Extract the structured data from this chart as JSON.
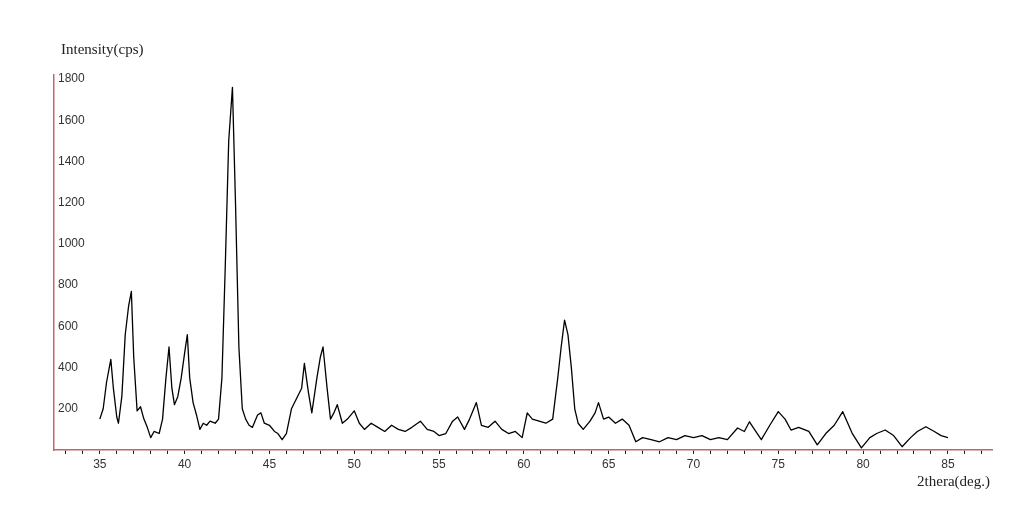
{
  "chart_data": {
    "type": "line",
    "xlabel": "2thera(deg.)",
    "ylabel": "Intensity(cps)",
    "xlim": [
      32.3,
      87.6
    ],
    "ylim": [
      0,
      1820
    ],
    "xticks": [
      {
        "value": 33,
        "label": null
      },
      {
        "value": 34,
        "label": null
      },
      35,
      {
        "value": 36,
        "label": null
      },
      {
        "value": 37,
        "label": null
      },
      {
        "value": 38,
        "label": null
      },
      {
        "value": 39,
        "label": null
      },
      40,
      {
        "value": 41,
        "label": null
      },
      {
        "value": 42,
        "label": null
      },
      {
        "value": 43,
        "label": null
      },
      {
        "value": 44,
        "label": null
      },
      45,
      {
        "value": 46,
        "label": null
      },
      {
        "value": 47,
        "label": null
      },
      {
        "value": 48,
        "label": null
      },
      {
        "value": 49,
        "label": null
      },
      50,
      {
        "value": 51,
        "label": null
      },
      {
        "value": 52,
        "label": null
      },
      {
        "value": 53,
        "label": null
      },
      {
        "value": 54,
        "label": null
      },
      55,
      {
        "value": 56,
        "label": null
      },
      {
        "value": 57,
        "label": null
      },
      {
        "value": 58,
        "label": null
      },
      {
        "value": 59,
        "label": null
      },
      60,
      {
        "value": 61,
        "label": null
      },
      {
        "value": 62,
        "label": null
      },
      {
        "value": 63,
        "label": null
      },
      {
        "value": 64,
        "label": null
      },
      65,
      {
        "value": 66,
        "label": null
      },
      {
        "value": 67,
        "label": null
      },
      {
        "value": 68,
        "label": null
      },
      {
        "value": 69,
        "label": null
      },
      70,
      {
        "value": 71,
        "label": null
      },
      {
        "value": 72,
        "label": null
      },
      {
        "value": 73,
        "label": null
      },
      {
        "value": 74,
        "label": null
      },
      75,
      {
        "value": 76,
        "label": null
      },
      {
        "value": 77,
        "label": null
      },
      {
        "value": 78,
        "label": null
      },
      {
        "value": 79,
        "label": null
      },
      80,
      {
        "value": 81,
        "label": null
      },
      {
        "value": 82,
        "label": null
      },
      {
        "value": 83,
        "label": null
      },
      {
        "value": 84,
        "label": null
      },
      85,
      {
        "value": 86,
        "label": null
      },
      {
        "value": 87,
        "label": null
      }
    ],
    "yticks": [
      200,
      400,
      600,
      800,
      1000,
      1200,
      1400,
      1600,
      1800
    ],
    "grid": false,
    "legend": false,
    "marker": "none",
    "line_style": "solid",
    "series": [
      {
        "color": "#000000",
        "x": [
          35.0,
          35.2,
          35.4,
          35.65,
          35.8,
          36.0,
          36.1,
          36.3,
          36.5,
          36.7,
          36.86,
          37.0,
          37.2,
          37.4,
          37.6,
          37.8,
          38.0,
          38.2,
          38.5,
          38.7,
          38.9,
          39.08,
          39.25,
          39.4,
          39.6,
          39.8,
          40.0,
          40.16,
          40.3,
          40.5,
          40.7,
          40.9,
          41.1,
          41.3,
          41.5,
          41.8,
          42.0,
          42.2,
          42.4,
          42.6,
          42.82,
          43.0,
          43.2,
          43.4,
          43.6,
          43.8,
          44.0,
          44.3,
          44.5,
          44.7,
          45.0,
          45.3,
          45.5,
          45.75,
          46.0,
          46.3,
          46.6,
          46.9,
          47.06,
          47.3,
          47.5,
          47.8,
          48.0,
          48.16,
          48.4,
          48.6,
          48.8,
          49.0,
          49.3,
          49.6,
          50.0,
          50.3,
          50.6,
          51.0,
          51.4,
          51.8,
          52.2,
          52.6,
          53.0,
          53.4,
          53.9,
          54.3,
          54.7,
          55.0,
          55.4,
          55.8,
          56.1,
          56.5,
          56.8,
          57.2,
          57.5,
          57.9,
          58.3,
          58.7,
          59.1,
          59.5,
          59.9,
          60.2,
          60.5,
          60.9,
          61.3,
          61.7,
          62.0,
          62.2,
          62.4,
          62.6,
          62.8,
          63.0,
          63.2,
          63.5,
          63.9,
          64.2,
          64.4,
          64.7,
          65.0,
          65.4,
          65.8,
          66.2,
          66.6,
          67.0,
          67.5,
          68.0,
          68.5,
          69.0,
          69.5,
          70.0,
          70.5,
          71.0,
          71.5,
          72.0,
          72.6,
          73.0,
          73.3,
          74.0,
          74.5,
          75.0,
          75.4,
          75.75,
          76.2,
          76.8,
          77.3,
          77.8,
          78.3,
          78.8,
          79.35,
          79.9,
          80.4,
          80.8,
          81.3,
          81.8,
          82.3,
          82.8,
          83.2,
          83.7,
          84.2,
          84.6,
          85.0
        ],
        "values": [
          150,
          200,
          330,
          440,
          300,
          160,
          130,
          260,
          560,
          700,
          770,
          450,
          190,
          210,
          150,
          110,
          60,
          90,
          80,
          150,
          350,
          500,
          300,
          220,
          260,
          350,
          470,
          560,
          350,
          230,
          170,
          100,
          130,
          120,
          140,
          130,
          150,
          350,
          900,
          1500,
          1760,
          1200,
          500,
          200,
          150,
          120,
          110,
          170,
          180,
          130,
          120,
          90,
          80,
          50,
          80,
          200,
          250,
          300,
          420,
          280,
          180,
          350,
          450,
          500,
          300,
          150,
          180,
          220,
          130,
          150,
          190,
          130,
          100,
          130,
          110,
          90,
          120,
          100,
          90,
          110,
          140,
          100,
          90,
          70,
          80,
          140,
          160,
          100,
          150,
          230,
          120,
          110,
          140,
          100,
          80,
          90,
          60,
          180,
          150,
          140,
          130,
          150,
          350,
          500,
          630,
          560,
          400,
          200,
          130,
          100,
          140,
          180,
          230,
          150,
          160,
          130,
          150,
          120,
          40,
          60,
          50,
          40,
          60,
          50,
          70,
          60,
          70,
          50,
          60,
          50,
          107,
          90,
          137,
          50,
          120,
          186,
          150,
          97,
          110,
          90,
          25,
          80,
          120,
          186,
          82,
          10,
          60,
          80,
          97,
          70,
          16,
          60,
          90,
          113,
          90,
          70,
          60
        ]
      }
    ]
  }
}
